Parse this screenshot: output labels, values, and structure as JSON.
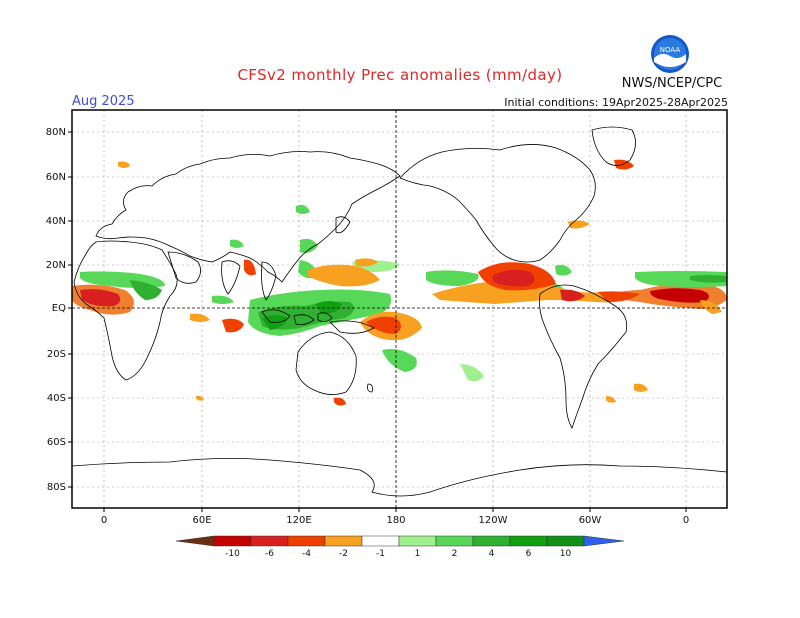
{
  "header": {
    "title": "CFSv2 monthly Prec anomalies (mm/day)",
    "agency": "NWS/NCEP/CPC",
    "month": "Aug 2025",
    "initial_conditions": "Initial conditions: 19Apr2025-28Apr2025",
    "logo_text": "NOAA"
  },
  "map": {
    "lat_labels": [
      "80N",
      "60N",
      "40N",
      "20N",
      "EQ",
      "20S",
      "40S",
      "60S",
      "80S"
    ],
    "lon_labels": [
      "0",
      "60E",
      "120E",
      "180",
      "120W",
      "60W",
      "0"
    ]
  },
  "colorbar": {
    "ticks": [
      "-10",
      "-6",
      "-4",
      "-2",
      "-1",
      "1",
      "2",
      "4",
      "6",
      "10"
    ],
    "colors": [
      "#6b2e12",
      "#c40000",
      "#d82020",
      "#f04000",
      "#f8a020",
      "#ffffff",
      "#a0f090",
      "#58d858",
      "#30b030",
      "#10a010",
      "#109018",
      "#3060f0"
    ]
  }
}
